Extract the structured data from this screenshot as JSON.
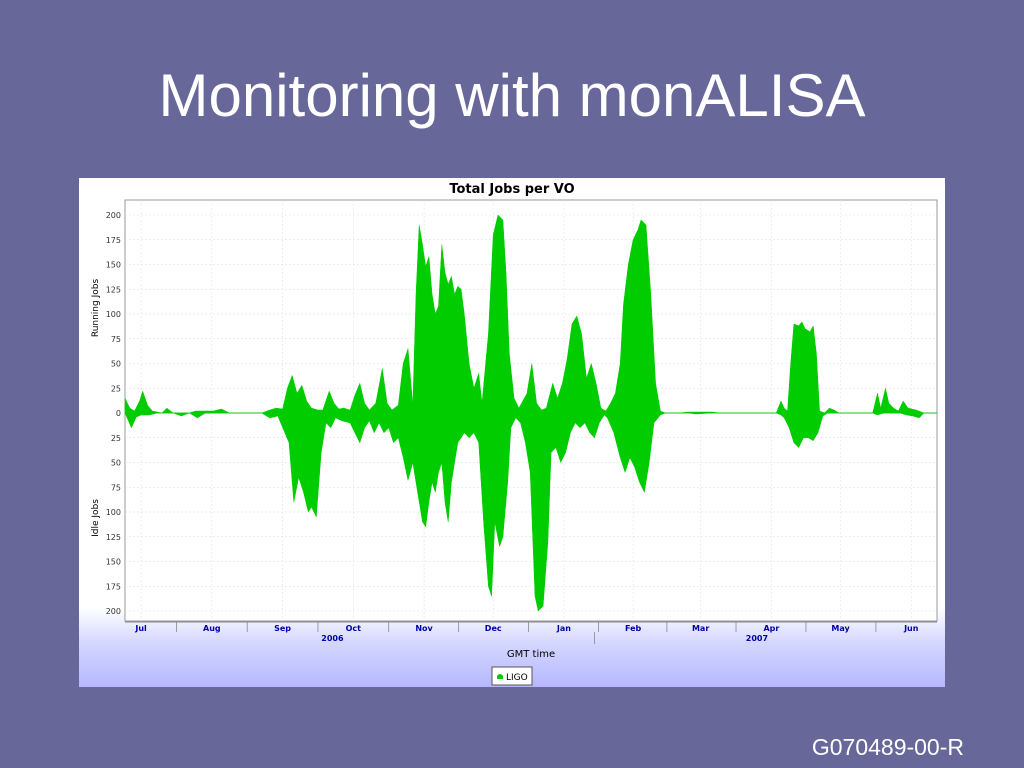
{
  "slide": {
    "title": "Monitoring with monALISA",
    "footer": "G070489-00-R"
  },
  "colors": {
    "background": "#676799",
    "series": "#00cc00"
  },
  "chart_data": {
    "type": "area",
    "title": "Total Jobs per VO",
    "xlabel": "GMT time",
    "ylabel_top": "Running Jobs",
    "ylabel_bottom": "Idle Jobs",
    "ylim_running": [
      0,
      210
    ],
    "ylim_idle": [
      0,
      210
    ],
    "y_ticks": [
      0,
      25,
      50,
      75,
      100,
      125,
      150,
      175,
      200
    ],
    "x_unit": "weeks since 2006-06-25",
    "xlim": [
      0,
      50.5
    ],
    "months": [
      {
        "label": "Jul",
        "x": 1.0
      },
      {
        "label": "Aug",
        "x": 5.4
      },
      {
        "label": "Sep",
        "x": 9.8
      },
      {
        "label": "Oct",
        "x": 14.2
      },
      {
        "label": "Nov",
        "x": 18.6
      },
      {
        "label": "Dec",
        "x": 22.9
      },
      {
        "label": "Jan",
        "x": 27.3
      },
      {
        "label": "Feb",
        "x": 31.6
      },
      {
        "label": "Mar",
        "x": 35.8
      },
      {
        "label": "Apr",
        "x": 40.2
      },
      {
        "label": "May",
        "x": 44.5
      },
      {
        "label": "Jun",
        "x": 48.9
      }
    ],
    "years": [
      {
        "label": "2006",
        "x": 12.9
      },
      {
        "label": "2007",
        "x": 39.3
      }
    ],
    "grid": true,
    "legend": {
      "placement": "bottom-center",
      "entries": [
        "LIGO"
      ]
    },
    "series": [
      {
        "name": "LIGO",
        "role": "running",
        "points": [
          [
            0,
            15
          ],
          [
            0.3,
            5
          ],
          [
            0.6,
            2
          ],
          [
            0.9,
            12
          ],
          [
            1.1,
            22
          ],
          [
            1.4,
            8
          ],
          [
            1.7,
            2
          ],
          [
            2.3,
            0
          ],
          [
            2.6,
            5
          ],
          [
            3,
            0
          ],
          [
            3.5,
            0
          ],
          [
            4,
            0
          ],
          [
            4.4,
            2
          ],
          [
            5,
            2
          ],
          [
            5.5,
            2
          ],
          [
            6,
            4
          ],
          [
            6.5,
            0
          ],
          [
            8.5,
            0
          ],
          [
            9,
            3
          ],
          [
            9.4,
            5
          ],
          [
            9.8,
            4
          ],
          [
            10.1,
            25
          ],
          [
            10.4,
            38
          ],
          [
            10.7,
            20
          ],
          [
            11,
            28
          ],
          [
            11.3,
            12
          ],
          [
            11.6,
            5
          ],
          [
            12,
            3
          ],
          [
            12.3,
            3
          ],
          [
            12.7,
            22
          ],
          [
            13,
            10
          ],
          [
            13.3,
            4
          ],
          [
            13.6,
            5
          ],
          [
            14,
            3
          ],
          [
            14.3,
            18
          ],
          [
            14.6,
            30
          ],
          [
            14.9,
            10
          ],
          [
            15.2,
            3
          ],
          [
            15.6,
            10
          ],
          [
            16,
            45
          ],
          [
            16.3,
            10
          ],
          [
            16.6,
            3
          ],
          [
            17,
            8
          ],
          [
            17.3,
            50
          ],
          [
            17.6,
            65
          ],
          [
            17.9,
            8
          ],
          [
            18.1,
            120
          ],
          [
            18.3,
            190
          ],
          [
            18.5,
            170
          ],
          [
            18.7,
            148
          ],
          [
            18.9,
            158
          ],
          [
            19.1,
            120
          ],
          [
            19.3,
            100
          ],
          [
            19.5,
            108
          ],
          [
            19.7,
            170
          ],
          [
            19.9,
            142
          ],
          [
            20.1,
            130
          ],
          [
            20.3,
            138
          ],
          [
            20.5,
            120
          ],
          [
            20.7,
            128
          ],
          [
            20.9,
            125
          ],
          [
            21.1,
            100
          ],
          [
            21.4,
            50
          ],
          [
            21.7,
            25
          ],
          [
            22,
            40
          ],
          [
            22.2,
            10
          ],
          [
            22.6,
            80
          ],
          [
            22.9,
            180
          ],
          [
            23.2,
            200
          ],
          [
            23.5,
            195
          ],
          [
            23.7,
            140
          ],
          [
            23.9,
            60
          ],
          [
            24.2,
            15
          ],
          [
            24.5,
            5
          ],
          [
            25,
            20
          ],
          [
            25.3,
            50
          ],
          [
            25.6,
            10
          ],
          [
            25.9,
            3
          ],
          [
            26.2,
            5
          ],
          [
            26.6,
            30
          ],
          [
            26.9,
            15
          ],
          [
            27.2,
            30
          ],
          [
            27.5,
            55
          ],
          [
            27.8,
            90
          ],
          [
            28.1,
            98
          ],
          [
            28.4,
            80
          ],
          [
            28.7,
            35
          ],
          [
            29,
            50
          ],
          [
            29.3,
            30
          ],
          [
            29.6,
            5
          ],
          [
            29.9,
            2
          ],
          [
            30.2,
            10
          ],
          [
            30.5,
            20
          ],
          [
            30.8,
            50
          ],
          [
            31,
            110
          ],
          [
            31.3,
            150
          ],
          [
            31.6,
            175
          ],
          [
            31.9,
            185
          ],
          [
            32.1,
            195
          ],
          [
            32.4,
            190
          ],
          [
            32.7,
            120
          ],
          [
            33,
            30
          ],
          [
            33.3,
            2
          ],
          [
            33.6,
            0
          ],
          [
            34.5,
            0
          ],
          [
            35,
            1
          ],
          [
            36.5,
            1
          ],
          [
            37,
            0
          ],
          [
            40.5,
            0
          ],
          [
            40.8,
            12
          ],
          [
            41,
            5
          ],
          [
            41.2,
            2
          ],
          [
            41.4,
            50
          ],
          [
            41.6,
            90
          ],
          [
            41.9,
            88
          ],
          [
            42.1,
            92
          ],
          [
            42.3,
            85
          ],
          [
            42.6,
            82
          ],
          [
            42.8,
            88
          ],
          [
            43,
            60
          ],
          [
            43.2,
            2
          ],
          [
            43.5,
            0
          ],
          [
            43.8,
            5
          ],
          [
            44.1,
            3
          ],
          [
            44.4,
            0
          ],
          [
            45,
            0
          ],
          [
            46.5,
            0
          ],
          [
            46.8,
            20
          ],
          [
            47,
            5
          ],
          [
            47.3,
            25
          ],
          [
            47.5,
            10
          ],
          [
            47.8,
            5
          ],
          [
            48.1,
            2
          ],
          [
            48.4,
            12
          ],
          [
            48.7,
            5
          ],
          [
            49.2,
            3
          ],
          [
            49.7,
            0
          ],
          [
            50.5,
            0
          ]
        ]
      },
      {
        "name": "LIGO",
        "role": "idle",
        "points": [
          [
            0,
            0
          ],
          [
            0.4,
            15
          ],
          [
            0.7,
            4
          ],
          [
            1,
            2
          ],
          [
            1.5,
            2
          ],
          [
            2,
            0
          ],
          [
            3,
            0
          ],
          [
            3.5,
            3
          ],
          [
            4,
            0
          ],
          [
            4.5,
            5
          ],
          [
            5,
            0
          ],
          [
            6.5,
            0
          ],
          [
            8.5,
            0
          ],
          [
            9,
            5
          ],
          [
            9.5,
            3
          ],
          [
            10.2,
            30
          ],
          [
            10.5,
            90
          ],
          [
            10.8,
            65
          ],
          [
            11.1,
            80
          ],
          [
            11.4,
            100
          ],
          [
            11.6,
            95
          ],
          [
            11.9,
            105
          ],
          [
            12.2,
            40
          ],
          [
            12.5,
            10
          ],
          [
            12.8,
            15
          ],
          [
            13.1,
            5
          ],
          [
            13.5,
            8
          ],
          [
            14,
            10
          ],
          [
            14.3,
            20
          ],
          [
            14.6,
            30
          ],
          [
            14.9,
            15
          ],
          [
            15.2,
            8
          ],
          [
            15.5,
            20
          ],
          [
            15.8,
            10
          ],
          [
            16.1,
            20
          ],
          [
            16.4,
            15
          ],
          [
            16.7,
            30
          ],
          [
            17,
            25
          ],
          [
            17.3,
            45
          ],
          [
            17.6,
            68
          ],
          [
            17.9,
            50
          ],
          [
            18.2,
            80
          ],
          [
            18.5,
            110
          ],
          [
            18.7,
            115
          ],
          [
            18.9,
            90
          ],
          [
            19.1,
            70
          ],
          [
            19.3,
            80
          ],
          [
            19.5,
            60
          ],
          [
            19.7,
            50
          ],
          [
            19.9,
            90
          ],
          [
            20.1,
            110
          ],
          [
            20.3,
            70
          ],
          [
            20.5,
            50
          ],
          [
            20.7,
            30
          ],
          [
            20.9,
            25
          ],
          [
            21.1,
            20
          ],
          [
            21.4,
            25
          ],
          [
            21.7,
            20
          ],
          [
            22,
            30
          ],
          [
            22.3,
            110
          ],
          [
            22.6,
            175
          ],
          [
            22.8,
            185
          ],
          [
            23,
            110
          ],
          [
            23.3,
            135
          ],
          [
            23.5,
            125
          ],
          [
            23.8,
            70
          ],
          [
            24,
            15
          ],
          [
            24.3,
            5
          ],
          [
            24.6,
            10
          ],
          [
            24.9,
            30
          ],
          [
            25.2,
            60
          ],
          [
            25.5,
            185
          ],
          [
            25.7,
            200
          ],
          [
            26,
            195
          ],
          [
            26.3,
            130
          ],
          [
            26.5,
            40
          ],
          [
            26.8,
            35
          ],
          [
            27.1,
            50
          ],
          [
            27.4,
            40
          ],
          [
            27.7,
            20
          ],
          [
            28,
            10
          ],
          [
            28.3,
            15
          ],
          [
            28.6,
            10
          ],
          [
            28.9,
            20
          ],
          [
            29.2,
            25
          ],
          [
            29.5,
            10
          ],
          [
            29.8,
            2
          ],
          [
            30,
            5
          ],
          [
            30.4,
            20
          ],
          [
            30.8,
            45
          ],
          [
            31.1,
            60
          ],
          [
            31.4,
            45
          ],
          [
            31.7,
            55
          ],
          [
            32,
            70
          ],
          [
            32.3,
            80
          ],
          [
            32.6,
            50
          ],
          [
            32.9,
            10
          ],
          [
            33.3,
            2
          ],
          [
            33.6,
            0
          ],
          [
            35,
            0
          ],
          [
            35.5,
            1
          ],
          [
            36.5,
            0
          ],
          [
            40.5,
            0
          ],
          [
            40.8,
            2
          ],
          [
            41,
            5
          ],
          [
            41.3,
            15
          ],
          [
            41.6,
            30
          ],
          [
            41.9,
            35
          ],
          [
            42.2,
            25
          ],
          [
            42.5,
            25
          ],
          [
            42.8,
            28
          ],
          [
            43.1,
            20
          ],
          [
            43.4,
            3
          ],
          [
            43.7,
            0
          ],
          [
            44.5,
            0
          ],
          [
            46.5,
            0
          ],
          [
            46.8,
            2
          ],
          [
            47.2,
            0
          ],
          [
            48.2,
            0
          ],
          [
            48.6,
            2
          ],
          [
            49,
            3
          ],
          [
            49.4,
            5
          ],
          [
            49.7,
            0
          ],
          [
            50.5,
            0
          ]
        ]
      }
    ]
  }
}
